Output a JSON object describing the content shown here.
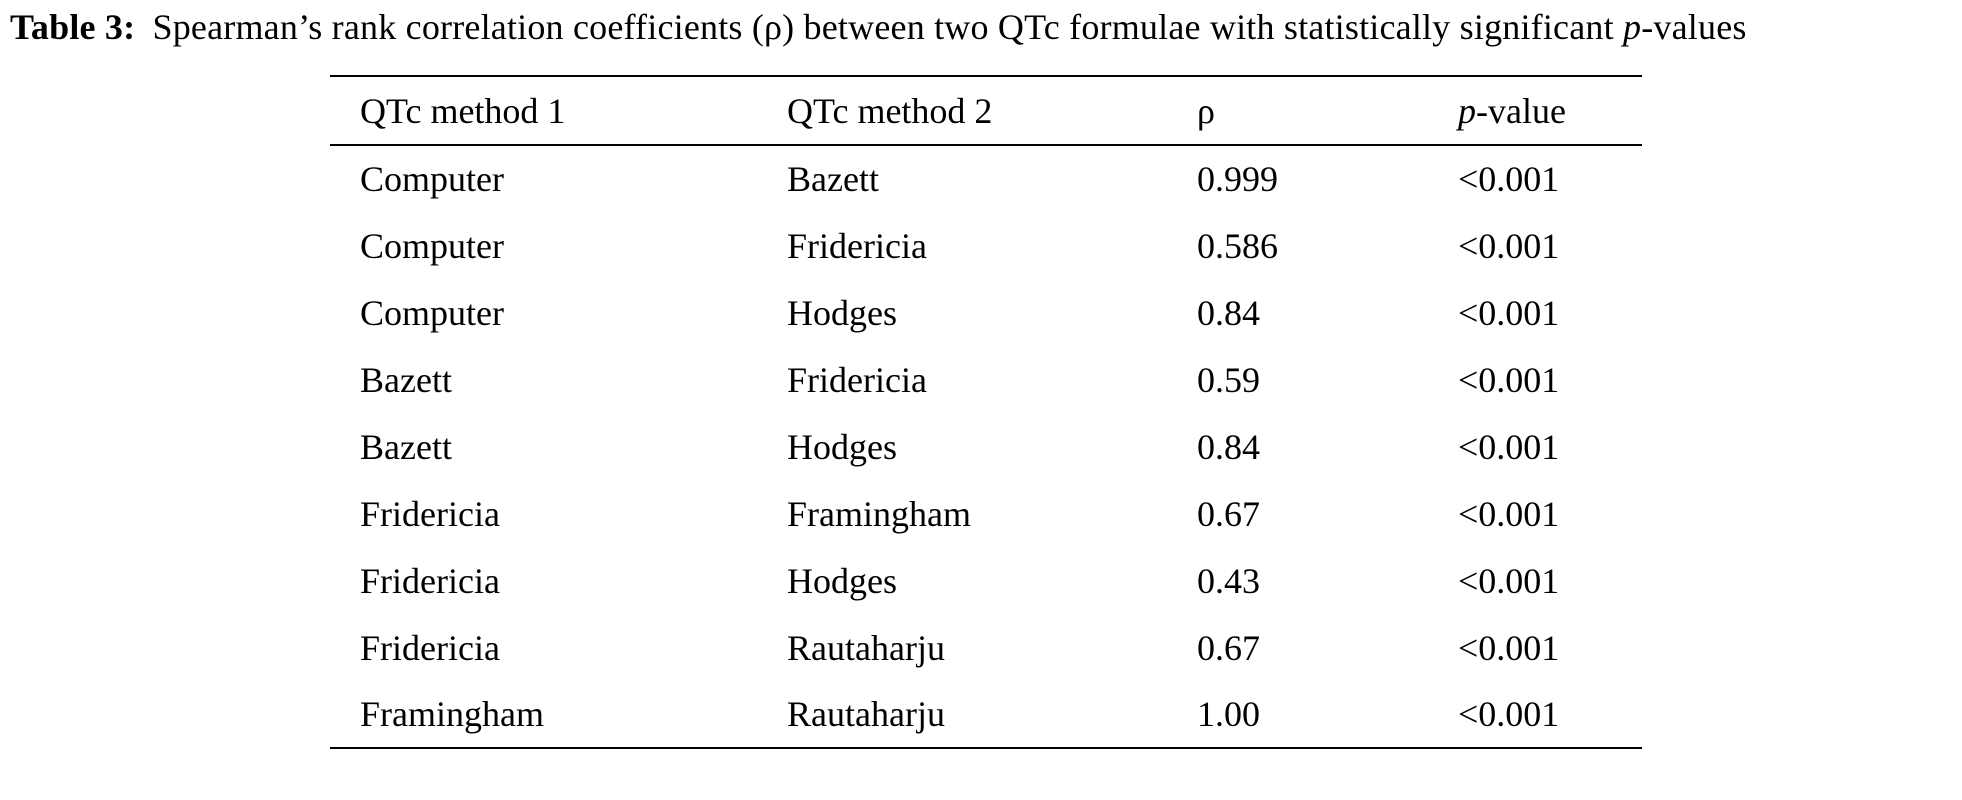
{
  "caption": {
    "label": "Table 3:",
    "body": "Spearman’s rank correlation coefficients (ρ) between two QTc formulae with statistically significant",
    "p_italic": "p",
    "p_suffix": "-values"
  },
  "table": {
    "headers": {
      "col1": "QTc method 1",
      "col2": "QTc method 2",
      "col3": "ρ",
      "col4_italic": "p",
      "col4_rest": "-value"
    },
    "rows": [
      {
        "method1": "Computer",
        "method2": "Bazett",
        "rho": "0.999",
        "p_value": "<0.001"
      },
      {
        "method1": "Computer",
        "method2": "Fridericia",
        "rho": "0.586",
        "p_value": "<0.001"
      },
      {
        "method1": "Computer",
        "method2": "Hodges",
        "rho": "0.84",
        "p_value": "<0.001"
      },
      {
        "method1": "Bazett",
        "method2": "Fridericia",
        "rho": "0.59",
        "p_value": "<0.001"
      },
      {
        "method1": "Bazett",
        "method2": "Hodges",
        "rho": "0.84",
        "p_value": "<0.001"
      },
      {
        "method1": "Fridericia",
        "method2": "Framingham",
        "rho": "0.67",
        "p_value": "<0.001"
      },
      {
        "method1": "Fridericia",
        "method2": "Hodges",
        "rho": "0.43",
        "p_value": "<0.001"
      },
      {
        "method1": "Fridericia",
        "method2": "Rautaharju",
        "rho": "0.67",
        "p_value": "<0.001"
      },
      {
        "method1": "Framingham",
        "method2": "Rautaharju",
        "rho": "1.00",
        "p_value": "<0.001"
      }
    ]
  },
  "colors": {
    "text": "#000000",
    "background": "#ffffff",
    "rule": "#000000"
  }
}
